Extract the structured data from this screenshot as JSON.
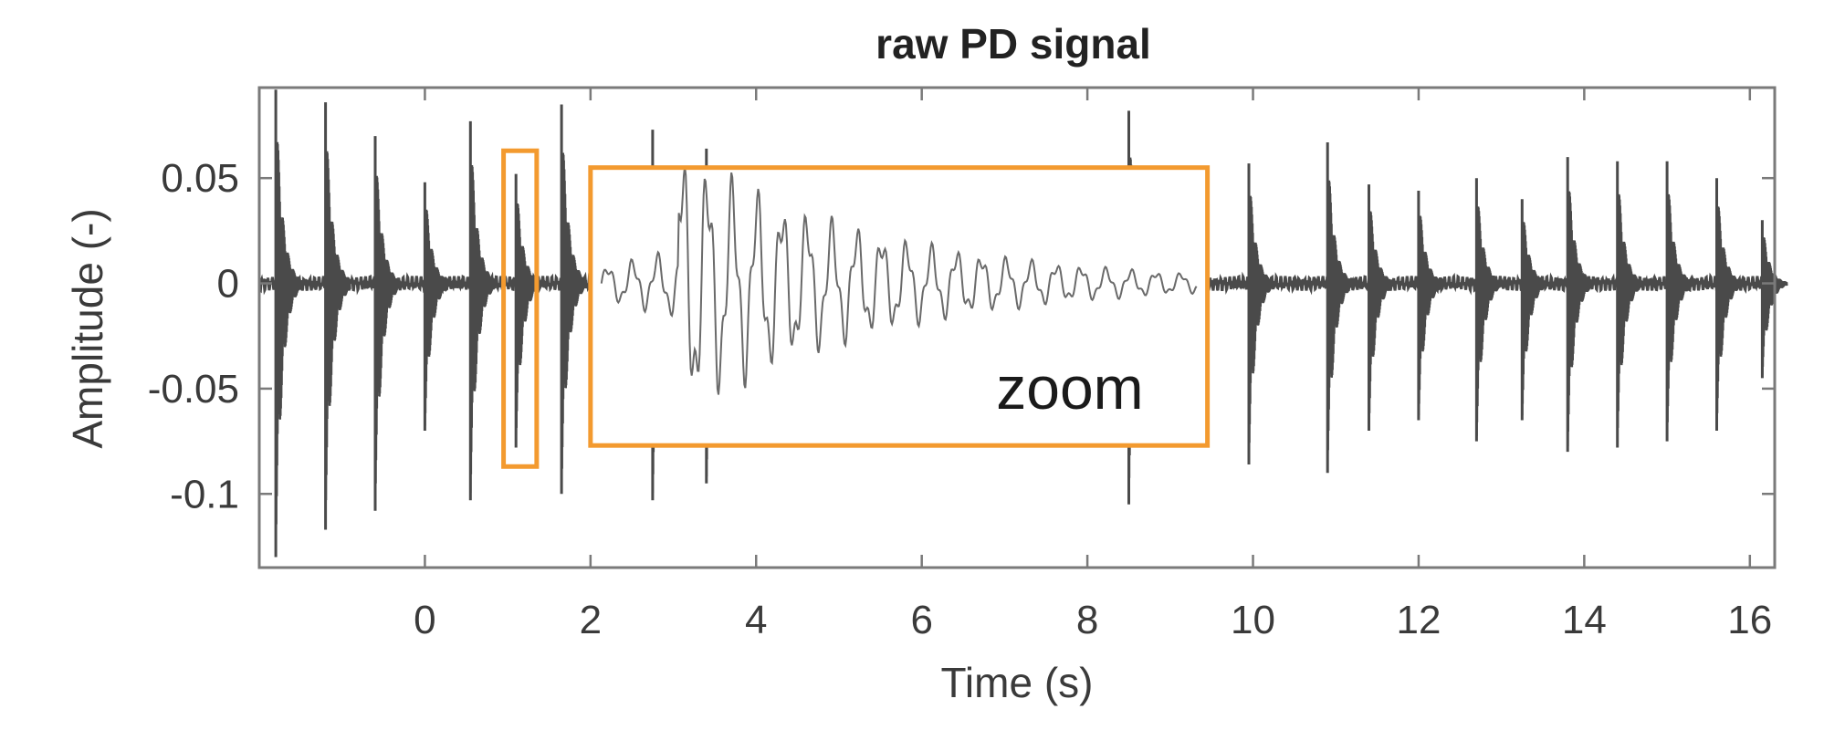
{
  "chart_data": {
    "type": "line",
    "title": "raw PD signal",
    "xlabel": "Time (s)",
    "ylabel": "Amplitude (-)",
    "xlim": [
      -2,
      16.3
    ],
    "ylim": [
      -0.135,
      0.093
    ],
    "xticks": [
      0,
      2,
      4,
      6,
      8,
      10,
      12,
      14,
      16
    ],
    "xtick_labels": [
      "0",
      "2",
      "4",
      "6",
      "8",
      "10",
      "12",
      "14",
      "16"
    ],
    "yticks": [
      0.05,
      0,
      -0.05,
      -0.1
    ],
    "ytick_labels": [
      "0.05",
      "0",
      "-0.05",
      "-0.1"
    ],
    "grid": false,
    "series": [
      {
        "color": "#4a4a4a",
        "bursts": [
          {
            "t": -1.8,
            "pos": 0.092,
            "neg": -0.13
          },
          {
            "t": -1.2,
            "pos": 0.086,
            "neg": -0.117
          },
          {
            "t": -0.6,
            "pos": 0.07,
            "neg": -0.108
          },
          {
            "t": 0.0,
            "pos": 0.048,
            "neg": -0.07
          },
          {
            "t": 0.55,
            "pos": 0.077,
            "neg": -0.103
          },
          {
            "t": 1.1,
            "pos": 0.052,
            "neg": -0.078
          },
          {
            "t": 1.65,
            "pos": 0.085,
            "neg": -0.1
          },
          {
            "t": 2.75,
            "pos": 0.073,
            "neg": -0.103
          },
          {
            "t": 3.4,
            "pos": 0.064,
            "neg": -0.095
          },
          {
            "t": 8.5,
            "pos": 0.082,
            "neg": -0.105
          },
          {
            "t": 9.95,
            "pos": 0.057,
            "neg": -0.086
          },
          {
            "t": 10.9,
            "pos": 0.067,
            "neg": -0.09
          },
          {
            "t": 11.4,
            "pos": 0.047,
            "neg": -0.07
          },
          {
            "t": 12.0,
            "pos": 0.044,
            "neg": -0.065
          },
          {
            "t": 12.7,
            "pos": 0.05,
            "neg": -0.075
          },
          {
            "t": 13.25,
            "pos": 0.04,
            "neg": -0.065
          },
          {
            "t": 13.8,
            "pos": 0.06,
            "neg": -0.08
          },
          {
            "t": 14.4,
            "pos": 0.058,
            "neg": -0.078
          },
          {
            "t": 15.0,
            "pos": 0.058,
            "neg": -0.075
          },
          {
            "t": 15.6,
            "pos": 0.05,
            "neg": -0.07
          },
          {
            "t": 16.15,
            "pos": 0.03,
            "neg": -0.045
          }
        ]
      }
    ],
    "annotations": [
      {
        "text": "",
        "color": "#f39a2f",
        "x_range": [
          0.95,
          1.35
        ],
        "y_range": [
          -0.087,
          0.063
        ]
      },
      {
        "text": "zoom",
        "color": "#f39a2f",
        "x_range": [
          2.0,
          9.45
        ],
        "y_range": [
          -0.077,
          0.055
        ]
      }
    ]
  }
}
